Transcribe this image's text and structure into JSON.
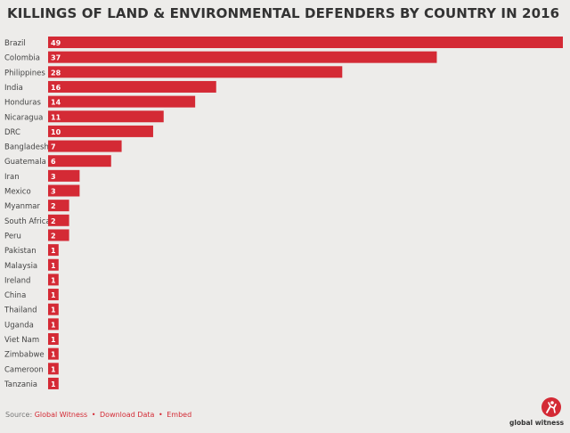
{
  "chart_data": {
    "type": "bar",
    "orientation": "horizontal",
    "title": "KILLINGS OF LAND & ENVIRONMENTAL DEFENDERS BY COUNTRY IN 2016",
    "categories": [
      "Brazil",
      "Colombia",
      "Philippines",
      "India",
      "Honduras",
      "Nicaragua",
      "DRC",
      "Bangladesh",
      "Guatemala",
      "Iran",
      "Mexico",
      "Myanmar",
      "South Africa",
      "Peru",
      "Pakistan",
      "Malaysia",
      "Ireland",
      "China",
      "Thailand",
      "Uganda",
      "Viet Nam",
      "Zimbabwe",
      "Cameroon",
      "Tanzania"
    ],
    "values": [
      49,
      37,
      28,
      16,
      14,
      11,
      10,
      7,
      6,
      3,
      3,
      2,
      2,
      2,
      1,
      1,
      1,
      1,
      1,
      1,
      1,
      1,
      1,
      1
    ],
    "xlim": [
      0,
      49
    ],
    "bar_color": "#d42a35",
    "grid": false
  },
  "footer": {
    "source_label": "Source:",
    "source_link": "Global Witness",
    "download_link": "Download Data",
    "embed_link": "Embed",
    "separator": "•"
  },
  "logo": {
    "text": "global witness"
  }
}
